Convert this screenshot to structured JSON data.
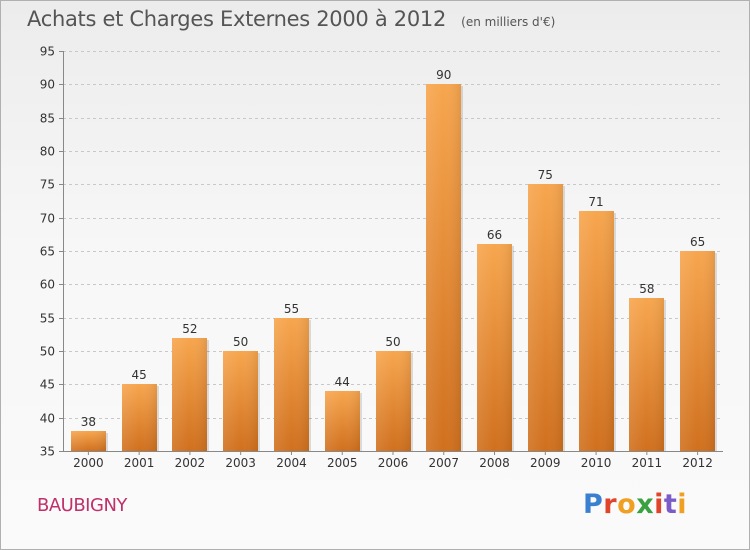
{
  "chart": {
    "title": "Achats et Charges Externes 2000 à 2012",
    "unit": "(en milliers d'€)",
    "location": "BAUBIGNY"
  },
  "brand": {
    "logo_text": "Proxiti",
    "letter_colors": [
      "#3a7fd0",
      "#e0442a",
      "#f0a020",
      "#3aa040",
      "#e0442a",
      "#7a5cc8",
      "#f0a020"
    ]
  },
  "colors": {
    "bar_top": "#f7a64e",
    "bar_bottom": "#d0701e",
    "grid": "#c8c8c8",
    "axis_text": "#333333"
  },
  "chart_data": {
    "type": "bar",
    "categories": [
      "2000",
      "2001",
      "2002",
      "2003",
      "2004",
      "2005",
      "2006",
      "2007",
      "2008",
      "2009",
      "2010",
      "2011",
      "2012"
    ],
    "values": [
      38,
      45,
      52,
      50,
      55,
      44,
      50,
      90,
      66,
      75,
      71,
      58,
      65
    ],
    "ylim": [
      35,
      95
    ],
    "yticks": [
      35,
      40,
      45,
      50,
      55,
      60,
      65,
      70,
      75,
      80,
      85,
      90,
      95
    ],
    "grid": true,
    "legend": "none"
  }
}
